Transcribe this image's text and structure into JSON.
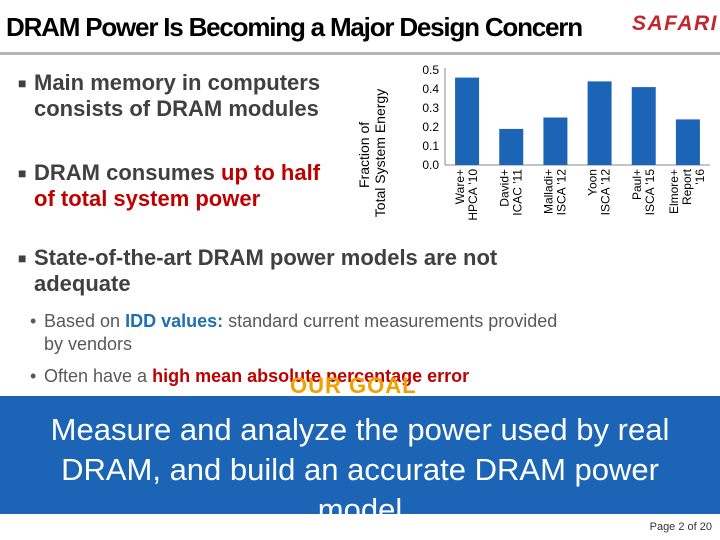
{
  "slide": {
    "title": "DRAM Power Is Becoming a Major Design Concern",
    "logo": "SAFARI",
    "bullets": [
      {
        "line1": "Main memory in computers",
        "line2": "consists of DRAM modules"
      },
      {
        "pre": "DRAM consumes ",
        "highlight": "up to half",
        "line2": "of total system power"
      },
      {
        "line1": "State-of-the-art DRAM power models are not",
        "line2": "adequate"
      }
    ],
    "subbullets": [
      {
        "highlight": "IDD values:",
        "pre": "Based on ",
        "post": " standard current measurements provided",
        "line2": "by vendors"
      },
      {
        "pre": "Often have a ",
        "highlight": "high mean absolute percentage error"
      }
    ],
    "goal_label": "OUR GOAL",
    "goal_text": [
      "Measure and analyze the power used by real",
      "DRAM, and build an accurate DRAM power",
      "model"
    ],
    "page": "Page 2 of 20",
    "colors": {
      "accent_red": "#c00000",
      "bar_blue": "#1c65b6",
      "goal_orange": "#f0a000"
    }
  },
  "chart_data": {
    "type": "bar",
    "ylabel": "Fraction of Total System Energy",
    "ylim": [
      0,
      0.5
    ],
    "yticks": [
      "0.0",
      "0.1",
      "0.2",
      "0.3",
      "0.4",
      "0.5"
    ],
    "categories": [
      [
        "Ware+",
        "HPCA '10"
      ],
      [
        "David+",
        "ICAC '11"
      ],
      [
        "Malladi+",
        "ISCA '12"
      ],
      [
        "Yoon",
        "ISCA '12"
      ],
      [
        "Paul+",
        "ISCA '15"
      ],
      [
        "Elmore+",
        "Report",
        "'16"
      ]
    ],
    "values": [
      0.46,
      0.19,
      0.25,
      0.44,
      0.41,
      0.24
    ],
    "bar_color": "#1c65b6"
  }
}
